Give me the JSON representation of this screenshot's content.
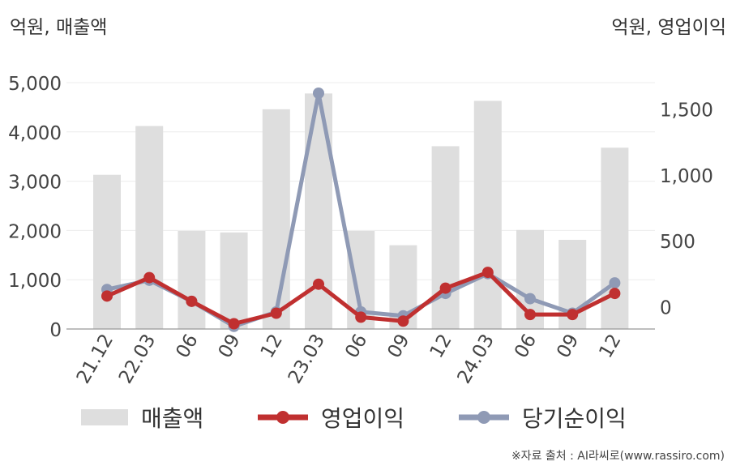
{
  "left_unit_label": "억원, 매출액",
  "right_unit_label": "억원, 영업이익",
  "source_note": "※자료 출처 : AI라씨로(www.rassiro.com)",
  "chart_data": {
    "type": "bar+line",
    "categories": [
      "21.12",
      "22.03",
      "06",
      "09",
      "12",
      "23.03",
      "06",
      "09",
      "12",
      "24.03",
      "06",
      "09",
      "12"
    ],
    "left_axis": {
      "ticks": [
        0,
        1000,
        2000,
        3000,
        4000,
        5000
      ],
      "tick_labels": [
        "0",
        "1,000",
        "2,000",
        "3,000",
        "4,000",
        "5,000"
      ],
      "ylim": [
        0,
        5000
      ]
    },
    "right_axis": {
      "ticks": [
        0,
        500,
        1000,
        1500
      ],
      "tick_labels": [
        "0",
        "500",
        "1,000",
        "1,500"
      ],
      "ylim": [
        -170,
        1700
      ]
    },
    "series": [
      {
        "name": "매출액",
        "type": "bar",
        "axis": "left",
        "color": "#dedede",
        "values": [
          3130,
          4120,
          1990,
          1960,
          4460,
          4780,
          1990,
          1700,
          3710,
          4630,
          2010,
          1810,
          3680
        ]
      },
      {
        "name": "영업이익",
        "type": "line",
        "axis": "right",
        "color": "#c03030",
        "values": [
          80,
          220,
          40,
          -130,
          -50,
          170,
          -80,
          -110,
          140,
          260,
          -60,
          -60,
          100
        ]
      },
      {
        "name": "당기순이익",
        "type": "line",
        "axis": "right",
        "color": "#8f9ab5",
        "values": [
          130,
          200,
          40,
          -150,
          -40,
          1620,
          -40,
          -70,
          100,
          250,
          60,
          -50,
          180
        ]
      }
    ],
    "grid": true,
    "legend_position": "bottom"
  }
}
